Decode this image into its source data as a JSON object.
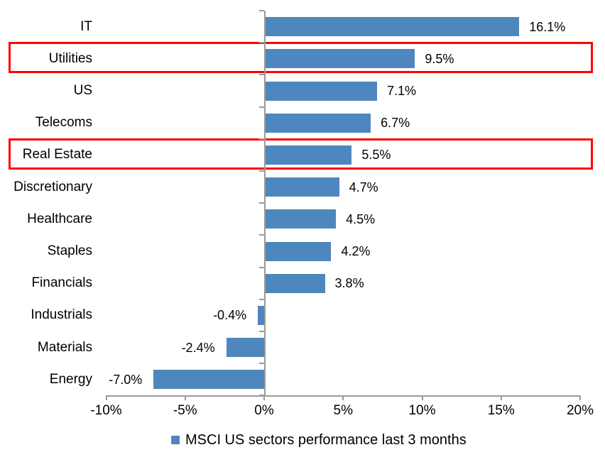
{
  "chart": {
    "colors": {
      "bar": "#4E87BD",
      "highlight_border": "#FF0000",
      "axis": "#9A9A9A",
      "text": "#000000",
      "background": "#FFFFFF"
    }
  },
  "chart_data": {
    "type": "bar",
    "orientation": "horizontal",
    "title": "",
    "xlabel": "",
    "ylabel": "",
    "categories": [
      "IT",
      "Utilities",
      "US",
      "Telecoms",
      "Real Estate",
      "Discretionary",
      "Healthcare",
      "Staples",
      "Financials",
      "Industrials",
      "Materials",
      "Energy"
    ],
    "values": [
      16.1,
      9.5,
      7.1,
      6.7,
      5.5,
      4.7,
      4.5,
      4.2,
      3.8,
      -0.4,
      -2.4,
      -7.0
    ],
    "value_labels": [
      "16.1%",
      "9.5%",
      "7.1%",
      "6.7%",
      "5.5%",
      "4.7%",
      "4.5%",
      "4.2%",
      "3.8%",
      "-0.4%",
      "-2.4%",
      "-7.0%"
    ],
    "highlighted_categories": [
      "Utilities",
      "Real Estate"
    ],
    "xlim": [
      -10,
      20
    ],
    "x_ticks": [
      -10,
      -5,
      0,
      5,
      10,
      15,
      20
    ],
    "x_tick_labels": [
      "-10%",
      "-5%",
      "0%",
      "5%",
      "10%",
      "15%",
      "20%"
    ],
    "grid": false,
    "legend_position": "bottom",
    "legend": [
      "MSCI US sectors performance last 3 months"
    ]
  }
}
